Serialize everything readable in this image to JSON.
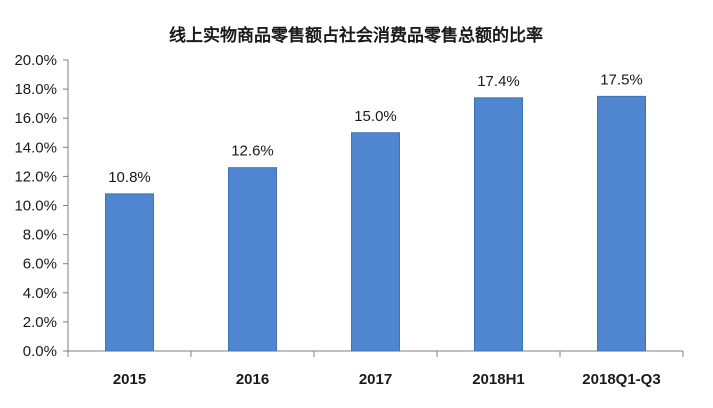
{
  "chart_data": {
    "type": "bar",
    "title": "线上实物商品零售额占社会消费品零售总额的比率",
    "categories": [
      "2015",
      "2016",
      "2017",
      "2018H1",
      "2018Q1-Q3"
    ],
    "series": [
      {
        "values": [
          10.8,
          12.6,
          15.0,
          17.4,
          17.5
        ]
      }
    ],
    "data_labels": [
      "10.8%",
      "12.6%",
      "15.0%",
      "17.4%",
      "17.5%"
    ],
    "y_ticks": [
      "0.0%",
      "2.0%",
      "4.0%",
      "6.0%",
      "8.0%",
      "10.0%",
      "12.0%",
      "14.0%",
      "16.0%",
      "18.0%",
      "20.0%"
    ],
    "ylim": [
      0,
      20
    ],
    "grid": false,
    "legend": "none",
    "bar_color": "#4f86cf",
    "bar_edge_color": "#3f73b8"
  }
}
